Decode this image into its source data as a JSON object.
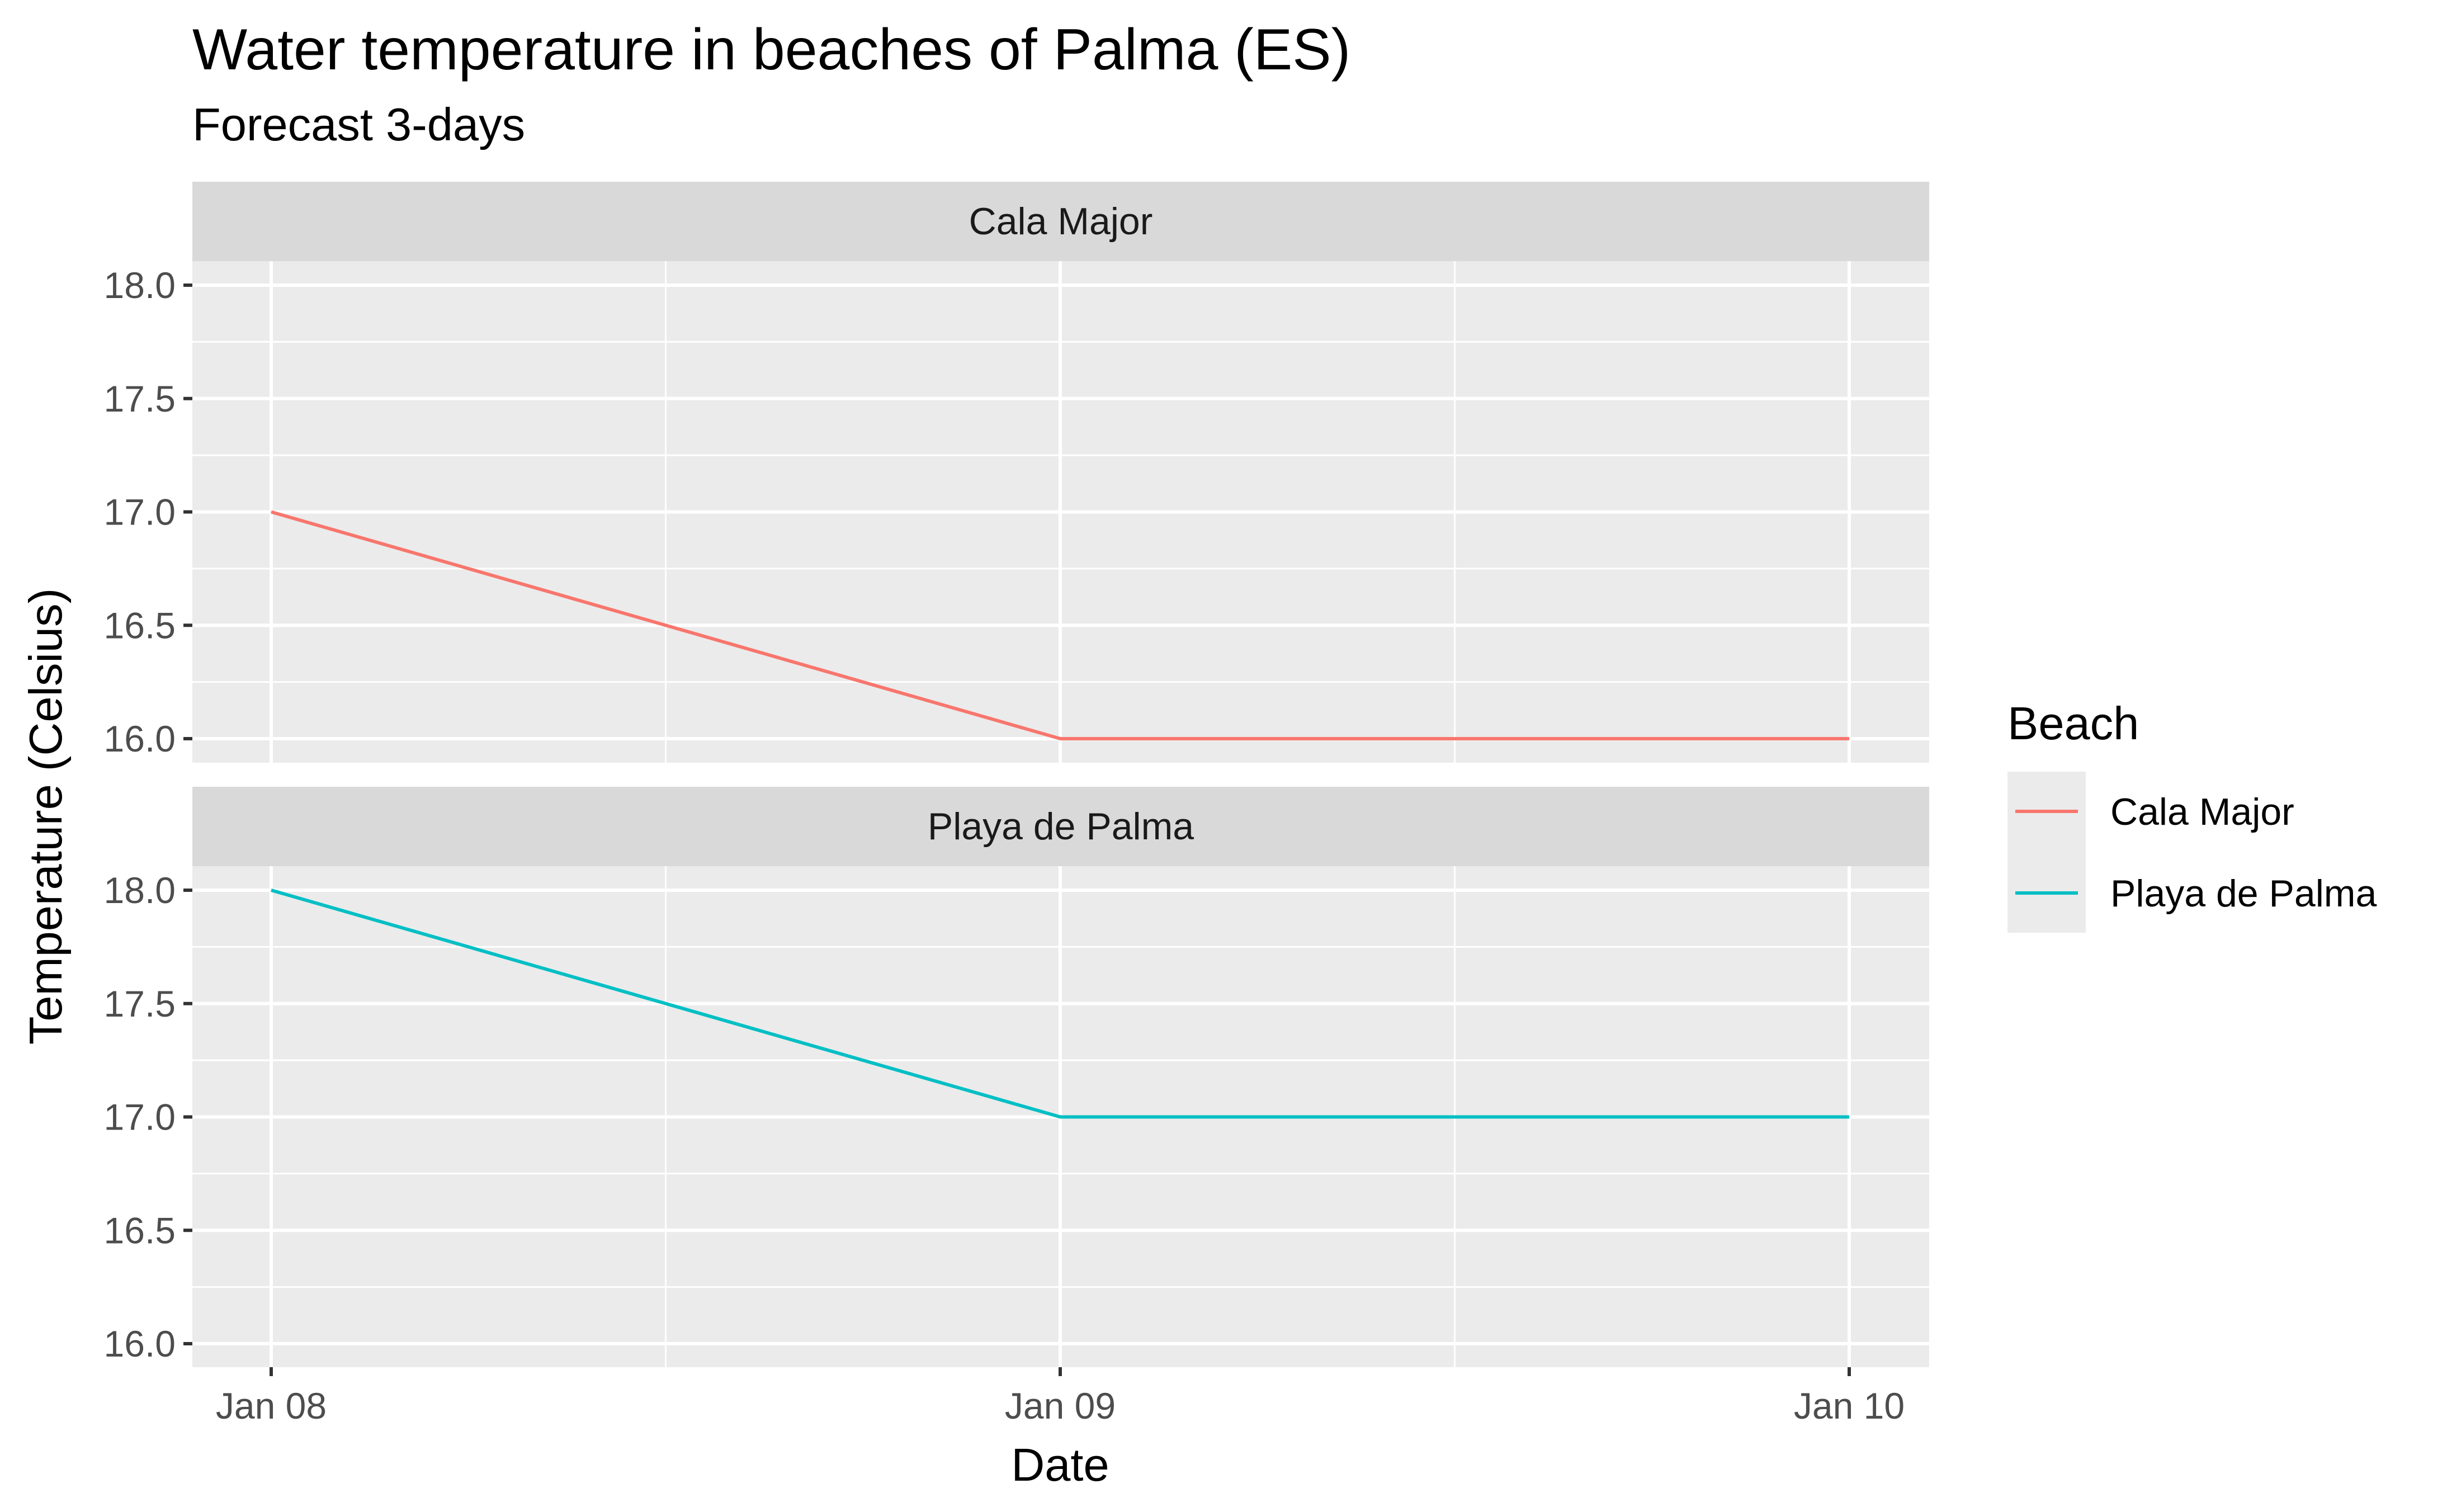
{
  "title": "Water temperature in beaches of Palma (ES)",
  "subtitle": "Forecast 3-days",
  "chart_data": {
    "type": "line",
    "faceted": true,
    "x_dates": [
      "Jan 08",
      "Jan 09",
      "Jan 10"
    ],
    "xlabel": "Date",
    "ylabel": "Temperature (Celsius)",
    "ylim": [
      16.0,
      18.0
    ],
    "yticks": [
      "16.0",
      "16.5",
      "17.0",
      "17.5",
      "18.0"
    ],
    "grid": true,
    "legend": {
      "title": "Beach",
      "placement": "right",
      "entries": [
        {
          "label": "Cala Major",
          "color": "#F8766D"
        },
        {
          "label": "Playa de Palma",
          "color": "#00BFC4"
        }
      ]
    },
    "panels": [
      {
        "strip": "Cala Major",
        "series": [
          {
            "name": "Cala Major",
            "color": "#F8766D",
            "values": [
              17.0,
              16.0,
              16.0
            ]
          }
        ]
      },
      {
        "strip": "Playa de Palma",
        "series": [
          {
            "name": "Playa de Palma",
            "color": "#00BFC4",
            "values": [
              18.0,
              17.0,
              17.0
            ]
          }
        ]
      }
    ]
  }
}
